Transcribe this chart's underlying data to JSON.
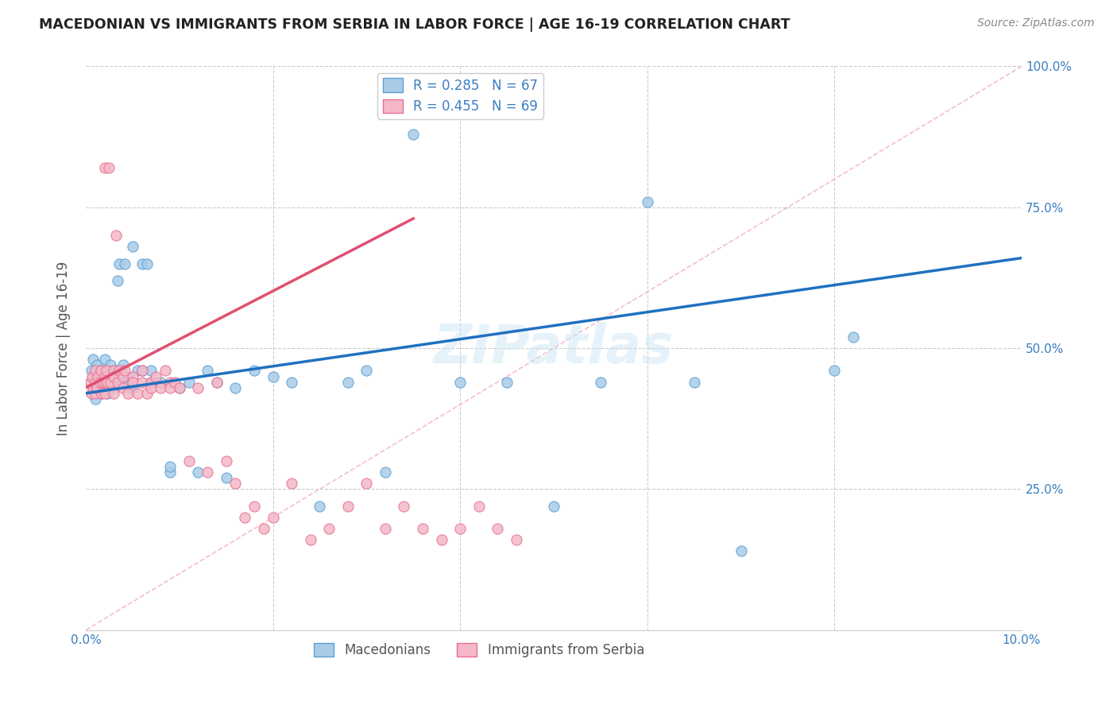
{
  "title": "MACEDONIAN VS IMMIGRANTS FROM SERBIA IN LABOR FORCE | AGE 16-19 CORRELATION CHART",
  "source": "Source: ZipAtlas.com",
  "ylabel": "In Labor Force | Age 16-19",
  "xlim": [
    0.0,
    0.1
  ],
  "ylim": [
    0.0,
    1.0
  ],
  "macedonian_color": "#a8cce8",
  "serbia_color": "#f4b8c8",
  "macedonian_edge": "#5a9fd4",
  "serbia_edge": "#e87090",
  "trend_blue": "#2070c0",
  "trend_pink": "#e05070",
  "trend_dashed_color": "#f0b0c0",
  "R_macedonian": 0.285,
  "N_macedonian": 67,
  "R_serbia": 0.455,
  "N_serbia": 69,
  "legend_label_macedonian": "Macedonians",
  "legend_label_serbia": "Immigrants from Serbia",
  "watermark": "ZIPatlas",
  "macedonian_x": [
    0.0005,
    0.0006,
    0.0007,
    0.0008,
    0.0009,
    0.001,
    0.001,
    0.0012,
    0.0013,
    0.0014,
    0.0015,
    0.0016,
    0.0017,
    0.0018,
    0.002,
    0.002,
    0.002,
    0.0022,
    0.0023,
    0.0025,
    0.0026,
    0.0028,
    0.003,
    0.003,
    0.0032,
    0.0034,
    0.0036,
    0.004,
    0.004,
    0.0042,
    0.0045,
    0.005,
    0.005,
    0.0055,
    0.006,
    0.006,
    0.0065,
    0.007,
    0.007,
    0.0075,
    0.008,
    0.009,
    0.009,
    0.01,
    0.011,
    0.012,
    0.013,
    0.014,
    0.015,
    0.016,
    0.018,
    0.02,
    0.022,
    0.025,
    0.028,
    0.03,
    0.032,
    0.035,
    0.04,
    0.045,
    0.05,
    0.055,
    0.06,
    0.065,
    0.07,
    0.08,
    0.082
  ],
  "macedonian_y": [
    0.44,
    0.46,
    0.42,
    0.48,
    0.43,
    0.45,
    0.41,
    0.47,
    0.44,
    0.43,
    0.46,
    0.42,
    0.44,
    0.45,
    0.43,
    0.46,
    0.48,
    0.44,
    0.42,
    0.46,
    0.47,
    0.44,
    0.45,
    0.43,
    0.46,
    0.62,
    0.65,
    0.44,
    0.47,
    0.65,
    0.45,
    0.43,
    0.68,
    0.46,
    0.46,
    0.65,
    0.65,
    0.44,
    0.46,
    0.44,
    0.44,
    0.28,
    0.29,
    0.43,
    0.44,
    0.28,
    0.46,
    0.44,
    0.27,
    0.43,
    0.46,
    0.45,
    0.44,
    0.22,
    0.44,
    0.46,
    0.28,
    0.88,
    0.44,
    0.44,
    0.22,
    0.44,
    0.76,
    0.44,
    0.14,
    0.46,
    0.52
  ],
  "serbia_x": [
    0.0005,
    0.0006,
    0.0007,
    0.0008,
    0.001,
    0.001,
    0.001,
    0.0012,
    0.0013,
    0.0015,
    0.0016,
    0.0017,
    0.0018,
    0.002,
    0.002,
    0.002,
    0.002,
    0.0022,
    0.0023,
    0.0025,
    0.0026,
    0.003,
    0.003,
    0.003,
    0.0032,
    0.0034,
    0.0036,
    0.004,
    0.004,
    0.0042,
    0.0045,
    0.005,
    0.005,
    0.0055,
    0.006,
    0.006,
    0.0065,
    0.007,
    0.007,
    0.0075,
    0.008,
    0.0085,
    0.009,
    0.009,
    0.0095,
    0.01,
    0.011,
    0.012,
    0.013,
    0.014,
    0.015,
    0.016,
    0.017,
    0.018,
    0.019,
    0.02,
    0.022,
    0.024,
    0.026,
    0.028,
    0.03,
    0.032,
    0.034,
    0.036,
    0.038,
    0.04,
    0.042,
    0.044,
    0.046
  ],
  "serbia_y": [
    0.44,
    0.42,
    0.45,
    0.43,
    0.46,
    0.42,
    0.44,
    0.43,
    0.45,
    0.44,
    0.46,
    0.42,
    0.44,
    0.45,
    0.42,
    0.44,
    0.82,
    0.46,
    0.44,
    0.82,
    0.44,
    0.46,
    0.42,
    0.45,
    0.7,
    0.44,
    0.46,
    0.43,
    0.45,
    0.46,
    0.42,
    0.45,
    0.44,
    0.42,
    0.44,
    0.46,
    0.42,
    0.44,
    0.43,
    0.45,
    0.43,
    0.46,
    0.44,
    0.43,
    0.44,
    0.43,
    0.3,
    0.43,
    0.28,
    0.44,
    0.3,
    0.26,
    0.2,
    0.22,
    0.18,
    0.2,
    0.26,
    0.16,
    0.18,
    0.22,
    0.26,
    0.18,
    0.22,
    0.18,
    0.16,
    0.18,
    0.22,
    0.18,
    0.16
  ],
  "blue_trend_x0": 0.0,
  "blue_trend_y0": 0.42,
  "blue_trend_x1": 0.1,
  "blue_trend_y1": 0.66,
  "pink_trend_x0": 0.0,
  "pink_trend_y0": 0.43,
  "pink_trend_x1": 0.035,
  "pink_trend_y1": 0.73
}
